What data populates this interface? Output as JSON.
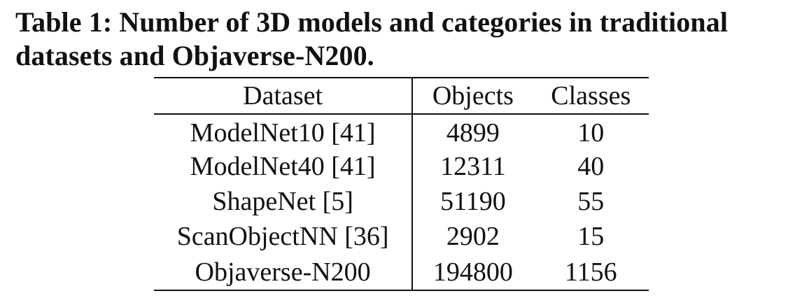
{
  "caption": {
    "line1": "Table 1: Number of 3D models and categories in traditional",
    "line2": "datasets and Objaverse-N200."
  },
  "table": {
    "headers": [
      "Dataset",
      "Objects",
      "Classes"
    ],
    "rows": [
      [
        "ModelNet10 [41]",
        "4899",
        "10"
      ],
      [
        "ModelNet40 [41]",
        "12311",
        "40"
      ],
      [
        "ShapeNet [5]",
        "51190",
        "55"
      ],
      [
        "ScanObjectNN [36]",
        "2902",
        "15"
      ],
      [
        "Objaverse-N200",
        "194800",
        "1156"
      ]
    ]
  }
}
